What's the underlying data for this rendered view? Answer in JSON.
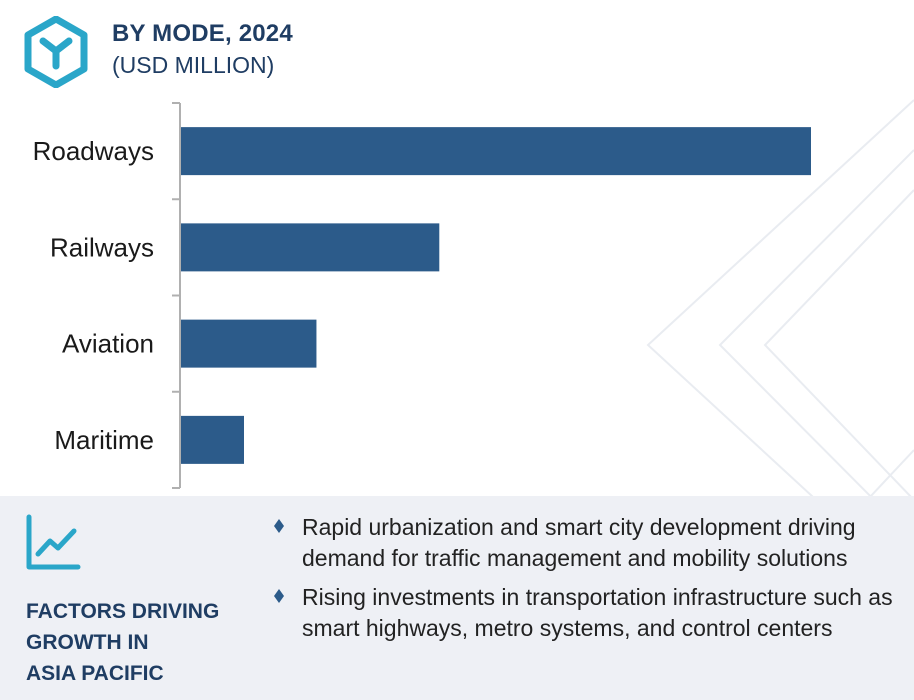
{
  "header": {
    "title": "BY MODE, 2024",
    "subtitle": "(USD MILLION)"
  },
  "chart_data": {
    "type": "bar",
    "orientation": "horizontal",
    "categories": [
      "Roadways",
      "Railways",
      "Aviation",
      "Maritime"
    ],
    "values": [
      100,
      41,
      21.5,
      10
    ],
    "xlim": [
      0,
      100
    ],
    "grid": false,
    "value_axis_labels_shown": false,
    "bar_color": "#2c5b8a",
    "axis_color": "#b0b0b0"
  },
  "factors": {
    "title_lines": [
      "FACTORS DRIVING",
      "GROWTH IN",
      "ASIA PACIFIC"
    ],
    "bullets": [
      "Rapid urbanization and smart city development driving demand for traffic management and mobility solutions",
      "Rising investments in transportation infrastructure such as smart highways, metro systems, and control centers"
    ]
  },
  "colors": {
    "accent": "#2aa6c9",
    "heading": "#1f3d63",
    "bar": "#2c5b8a",
    "panel": "#eef0f5"
  },
  "icons": {
    "logo": "hexagon-y-logo-icon",
    "factors": "line-chart-trend-icon",
    "bullet": "diamond-bullet-icon"
  }
}
